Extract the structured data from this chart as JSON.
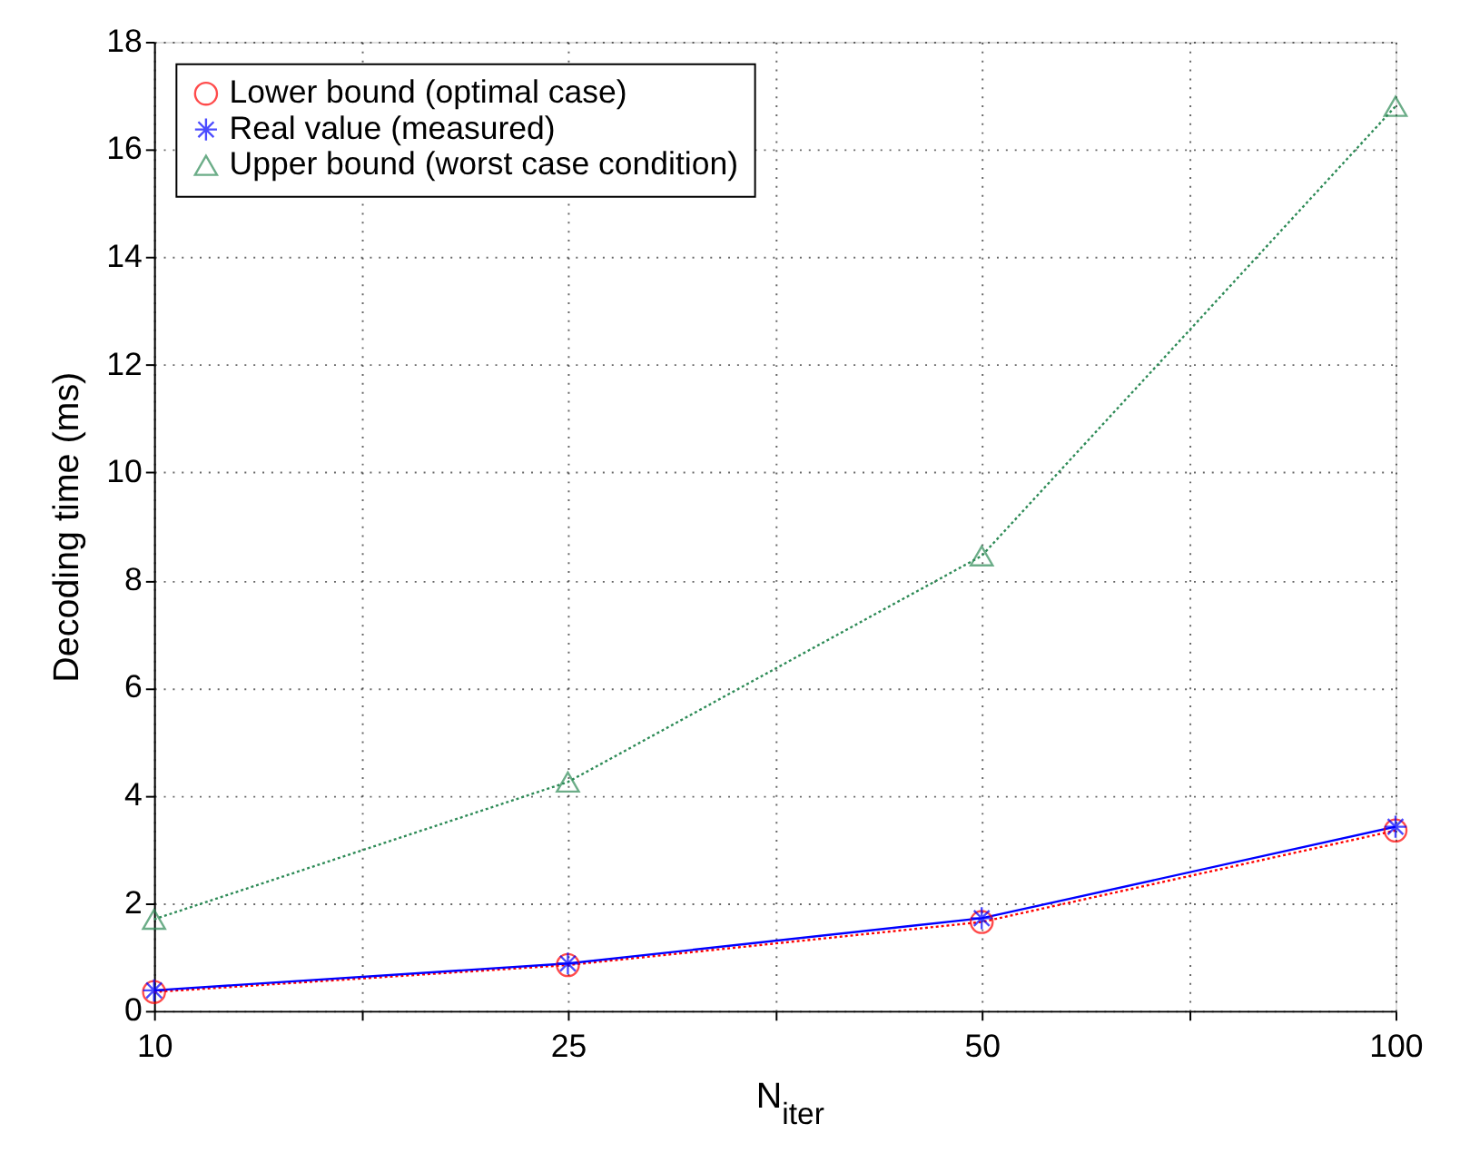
{
  "chart_data": {
    "type": "line",
    "xlabel": "N$_{iter}$",
    "ylabel": "Decoding time (ms)",
    "categories": [
      "10",
      "25",
      "50",
      "100"
    ],
    "series": [
      {
        "name": "Lower bound (optimal case)",
        "color": "#ff0000",
        "values": [
          0.35,
          0.85,
          1.65,
          3.35
        ],
        "marker": "circle",
        "line_style": "dotted"
      },
      {
        "name": "Real value (measured)",
        "color": "#0000ff",
        "values": [
          0.38,
          0.88,
          1.72,
          3.42
        ],
        "marker": "cross",
        "line_style": "solid"
      },
      {
        "name": "Upper bound (worst case condition)",
        "color": "#2e8b57",
        "values": [
          1.7,
          4.25,
          8.45,
          16.8
        ],
        "marker": "triangle",
        "line_style": "dotted"
      }
    ],
    "ylim": [
      0,
      18
    ],
    "yticks": [
      0,
      2,
      4,
      6,
      8,
      10,
      12,
      14,
      16,
      18
    ],
    "grid": true,
    "legend": "top left"
  }
}
